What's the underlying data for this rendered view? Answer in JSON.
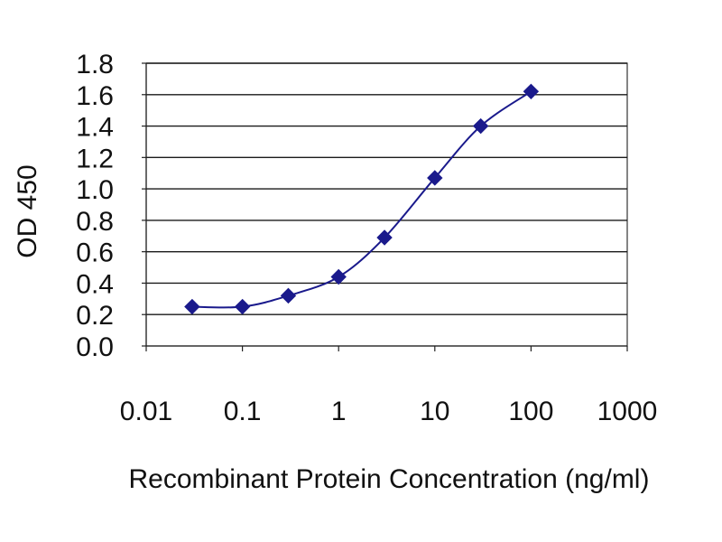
{
  "chart_data": {
    "type": "line",
    "xscale": "log",
    "x_ticks": [
      "0.01",
      "0.1",
      "1",
      "10",
      "100",
      "1000"
    ],
    "x_tick_values": [
      0.01,
      0.1,
      1,
      10,
      100,
      1000
    ],
    "y_ticks": [
      "0.0",
      "0.2",
      "0.4",
      "0.6",
      "0.8",
      "1.0",
      "1.2",
      "1.4",
      "1.6",
      "1.8"
    ],
    "xlim": [
      0.01,
      1000
    ],
    "ylim": [
      0,
      1.8
    ],
    "xlabel": "Recombinant Protein Concentration (ng/ml)",
    "ylabel": "OD 450",
    "grid": "horizontal",
    "series": [
      {
        "x": [
          0.03,
          0.1,
          0.3,
          1,
          3,
          10,
          30,
          100
        ],
        "y": [
          0.25,
          0.25,
          0.32,
          0.44,
          0.69,
          1.07,
          1.4,
          1.62
        ]
      }
    ],
    "colors": {
      "series": "#1a1a8c",
      "grid": "#1a1a1a",
      "text": "#111111"
    }
  }
}
